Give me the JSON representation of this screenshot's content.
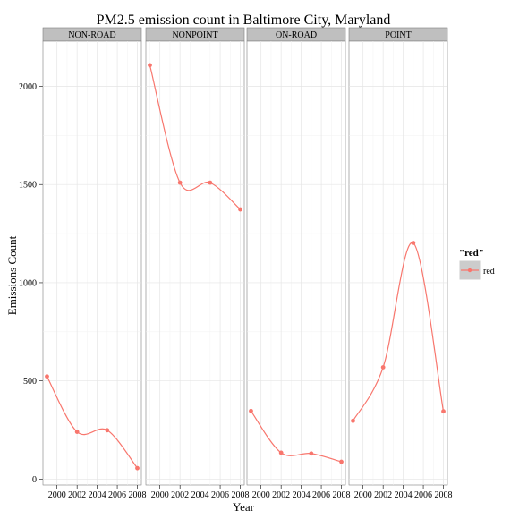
{
  "chart_data": {
    "type": "line",
    "title": "PM2.5 emission count in Baltimore City, Maryland",
    "xlabel": "Year",
    "ylabel": "Emissions Count",
    "x_ticks": [
      2000,
      2002,
      2004,
      2006,
      2008
    ],
    "y_ticks": [
      0,
      500,
      1000,
      1500,
      2000
    ],
    "xlim": [
      1998.6,
      2008.4
    ],
    "ylim": [
      -30,
      2230
    ],
    "grid": true,
    "legend": {
      "title": "\"red\"",
      "label": "red",
      "placement": "right"
    },
    "series_color": "#F8766D",
    "panels": [
      {
        "name": "NON-ROAD",
        "x": [
          1999,
          2002,
          2005,
          2008
        ],
        "values": [
          522.9,
          240.8,
          248.9,
          55.8
        ]
      },
      {
        "name": "NONPOINT",
        "x": [
          1999,
          2002,
          2005,
          2008
        ],
        "values": [
          2107.6,
          1509.5,
          1509.5,
          1373.2
        ]
      },
      {
        "name": "ON-ROAD",
        "x": [
          1999,
          2002,
          2005,
          2008
        ],
        "values": [
          346.8,
          134.3,
          130.4,
          88.3
        ]
      },
      {
        "name": "POINT",
        "x": [
          1999,
          2002,
          2005,
          2008
        ],
        "values": [
          296.8,
          569.3,
          1202.5,
          344.98
        ]
      }
    ]
  }
}
